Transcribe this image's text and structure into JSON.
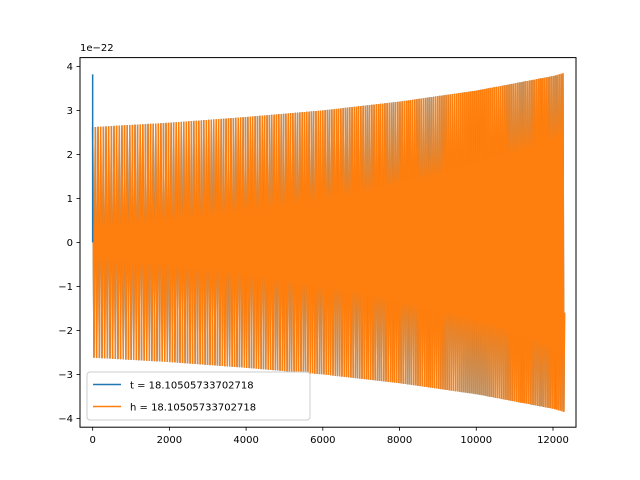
{
  "chart_data": {
    "type": "line",
    "title": "",
    "xlabel": "",
    "ylabel": "",
    "y_offset_label": "1e−22",
    "xlim": [
      -330,
      12600
    ],
    "ylim": [
      -4.2,
      4.2
    ],
    "x_ticks": [
      0,
      2000,
      4000,
      6000,
      8000,
      10000,
      12000
    ],
    "x_tick_labels": [
      "0",
      "2000",
      "4000",
      "6000",
      "8000",
      "10000",
      "12000"
    ],
    "y_ticks": [
      4,
      3,
      2,
      1,
      0,
      -1,
      -2,
      -3,
      -4
    ],
    "y_tick_labels": [
      "4",
      "3",
      "2",
      "1",
      "0",
      "−1",
      "−2",
      "−3",
      "−4"
    ],
    "grid": false,
    "legend_position": "lower-left",
    "series": [
      {
        "name": "t = 18.10505733702718",
        "color": "#1f77b4",
        "x_range": [
          0,
          12300
        ],
        "initial_spike": 3.82,
        "envelope_x": [
          0,
          2000,
          4000,
          6000,
          8000,
          10000,
          12000,
          12300
        ],
        "envelope_y": [
          2.62,
          2.72,
          2.85,
          3.0,
          3.2,
          3.45,
          3.78,
          3.83
        ]
      },
      {
        "name": "h = 18.10505733702718",
        "color": "#ff7f0e",
        "x_range": [
          0,
          12300
        ],
        "envelope_x": [
          0,
          2000,
          4000,
          6000,
          8000,
          10000,
          12000,
          12300
        ],
        "envelope_y": [
          2.62,
          2.72,
          2.85,
          3.0,
          3.2,
          3.45,
          3.78,
          3.86
        ]
      }
    ]
  }
}
